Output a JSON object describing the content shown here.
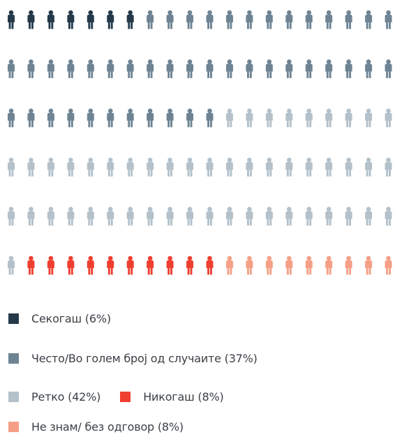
{
  "chart_data": {
    "type": "pictogram",
    "total_icons": 120,
    "series": [
      {
        "name": "Секогаш",
        "value": 6,
        "count": 7,
        "color": "#243a4b",
        "label": "Секогаш (6%)"
      },
      {
        "name": "Често/Во голем број од случаите",
        "value": 37,
        "count": 44,
        "color": "#6e8494",
        "label": "Често/Во голем број од случаите (37%)"
      },
      {
        "name": "Ретко",
        "value": 42,
        "count": 50,
        "color": "#b4c1ca",
        "label": "Ретко (42%)"
      },
      {
        "name": "Никогаш",
        "value": 8,
        "count": 10,
        "color": "#ef3f31",
        "label": "Никогаш (8%)"
      },
      {
        "name": "Не знам/ без одговор",
        "value": 8,
        "count": 9,
        "color": "#f5a086",
        "label": "Не знам/ без одговор (8%)"
      }
    ],
    "legend_position": "bottom"
  }
}
